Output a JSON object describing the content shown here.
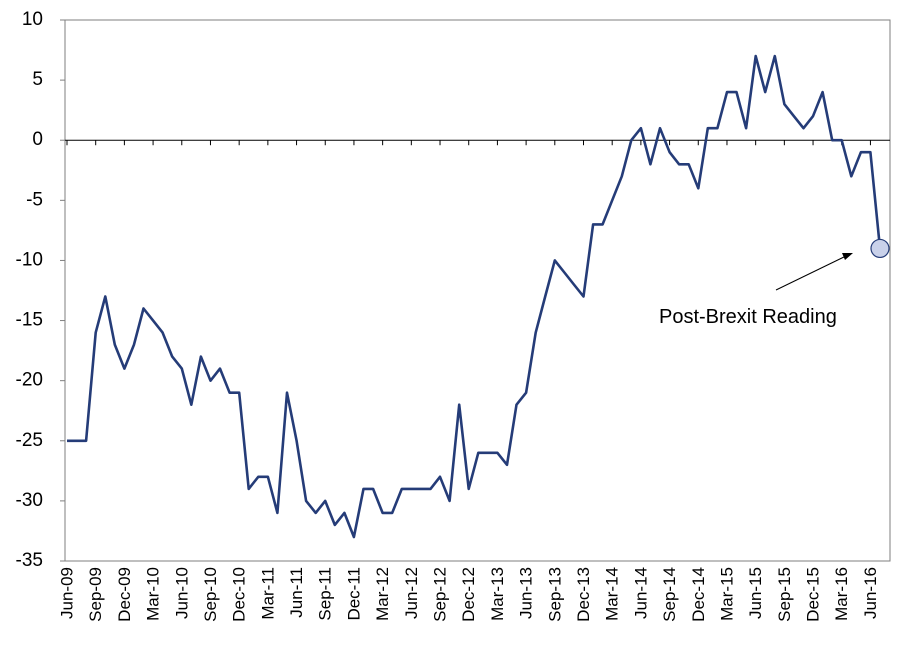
{
  "chart_data": {
    "type": "line",
    "title": "",
    "xlabel": "",
    "ylabel": "",
    "ylim": [
      -35,
      10
    ],
    "yticks": [
      10,
      5,
      0,
      -5,
      -10,
      -15,
      -20,
      -25,
      -30,
      -35
    ],
    "xtick_labels": [
      "Jun-09",
      "Sep-09",
      "Dec-09",
      "Mar-10",
      "Jun-10",
      "Sep-10",
      "Dec-10",
      "Mar-11",
      "Jun-11",
      "Sep-11",
      "Dec-11",
      "Mar-12",
      "Jun-12",
      "Sep-12",
      "Dec-12",
      "Mar-13",
      "Jun-13",
      "Sep-13",
      "Dec-13",
      "Mar-14",
      "Jun-14",
      "Sep-14",
      "Dec-14",
      "Mar-15",
      "Jun-15",
      "Sep-15",
      "Dec-15",
      "Mar-16",
      "Jun-16"
    ],
    "x_start": "Jun-09",
    "x_end": "Jul-16",
    "line_color": "#253C78",
    "grid": false,
    "series": [
      {
        "values": [
          -25,
          -25,
          -25,
          -16,
          -13,
          -17,
          -19,
          -17,
          -14,
          -15,
          -16,
          -18,
          -19,
          -22,
          -18,
          -20,
          -19,
          -21,
          -21,
          -29,
          -28,
          -28,
          -31,
          -21,
          -25,
          -30,
          -31,
          -30,
          -32,
          -31,
          -33,
          -29,
          -29,
          -31,
          -31,
          -29,
          -29,
          -29,
          -29,
          -28,
          -30,
          -22,
          -29,
          -26,
          -26,
          -26,
          -27,
          -22,
          -21,
          -16,
          -13,
          -10,
          -11,
          -12,
          -13,
          -7,
          -7,
          -5,
          -3,
          0,
          1,
          -2,
          1,
          -1,
          -2,
          -2,
          -4,
          1,
          1,
          4,
          4,
          1,
          7,
          4,
          7,
          3,
          2,
          1,
          2,
          4,
          0,
          0,
          -3,
          -1,
          -1,
          -9
        ]
      }
    ],
    "marker_point": {
      "x": "Jul-16",
      "y": -9,
      "fill": "#C9D1EA"
    },
    "annotation": {
      "text": "Post-Brexit Reading"
    }
  }
}
